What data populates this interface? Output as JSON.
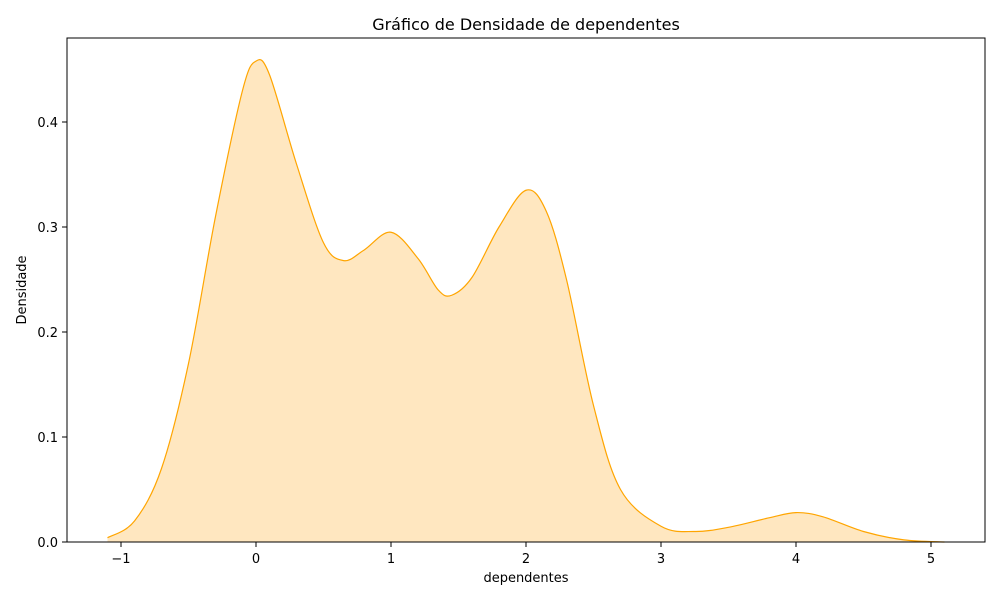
{
  "chart_data": {
    "type": "area",
    "title": "Gráfico de Densidade de dependentes",
    "xlabel": "dependentes",
    "ylabel": "Densidade",
    "xlim": [
      -1.4,
      5.4
    ],
    "ylim": [
      0,
      0.48
    ],
    "x_ticks": [
      -1,
      0,
      1,
      2,
      3,
      4,
      5
    ],
    "x_tick_labels": [
      "−1",
      "0",
      "1",
      "2",
      "3",
      "4",
      "5"
    ],
    "y_ticks": [
      0.0,
      0.1,
      0.2,
      0.3,
      0.4
    ],
    "y_tick_labels": [
      "0.0",
      "0.1",
      "0.2",
      "0.3",
      "0.4"
    ],
    "grid": false,
    "legend": "none",
    "colors": {
      "line": "#ffa500",
      "fill": "#ffe7c0",
      "axes": "#000000",
      "background": "#ffffff"
    },
    "series": [
      {
        "x": [
          -1.1,
          -0.9,
          -0.7,
          -0.5,
          -0.3,
          -0.1,
          0.0,
          0.1,
          0.3,
          0.5,
          0.65,
          0.8,
          1.0,
          1.2,
          1.35,
          1.45,
          1.6,
          1.8,
          2.0,
          2.15,
          2.3,
          2.5,
          2.7,
          3.0,
          3.25,
          3.5,
          3.8,
          4.0,
          4.2,
          4.5,
          4.8,
          5.1
        ],
        "y": [
          0.004,
          0.02,
          0.07,
          0.17,
          0.31,
          0.43,
          0.458,
          0.445,
          0.36,
          0.285,
          0.268,
          0.278,
          0.295,
          0.27,
          0.24,
          0.235,
          0.252,
          0.3,
          0.335,
          0.315,
          0.25,
          0.13,
          0.05,
          0.015,
          0.01,
          0.014,
          0.023,
          0.028,
          0.024,
          0.01,
          0.002,
          0.0
        ]
      }
    ]
  }
}
